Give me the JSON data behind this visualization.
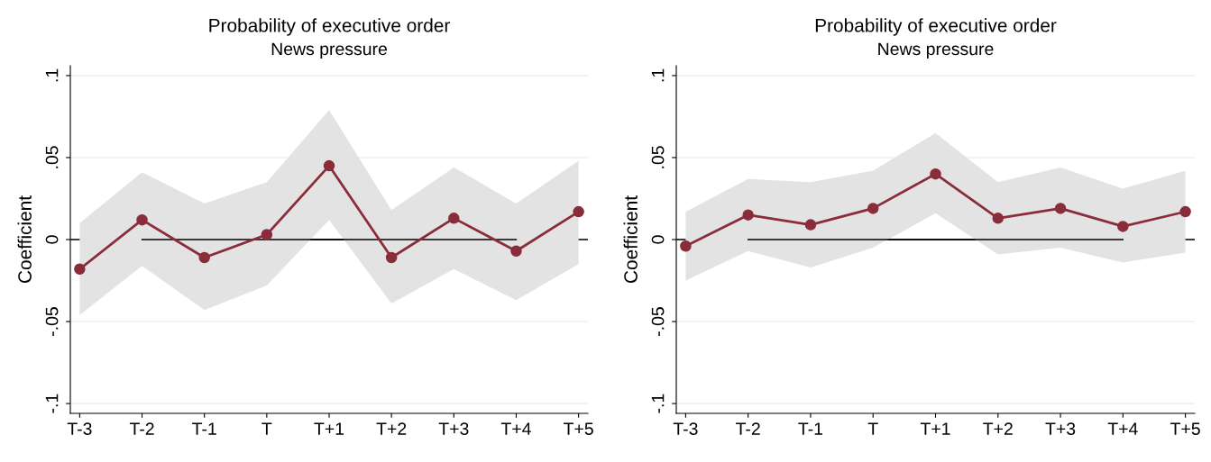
{
  "chart_data": [
    {
      "type": "line",
      "title": "Probability of executive order",
      "subtitle": "News pressure",
      "ylabel": "Coefficient",
      "categories": [
        "T-3",
        "T-2",
        "T-1",
        "T",
        "T+1",
        "T+2",
        "T+3",
        "T+4",
        "T+5"
      ],
      "series": [
        {
          "color": "#8b2c3a",
          "marker": "circle",
          "values": [
            -0.018,
            0.012,
            -0.011,
            0.003,
            0.045,
            -0.011,
            0.013,
            -0.007,
            0.017
          ],
          "lower": [
            -0.046,
            -0.016,
            -0.043,
            -0.028,
            0.012,
            -0.039,
            -0.018,
            -0.037,
            -0.015
          ],
          "upper": [
            0.01,
            0.041,
            0.022,
            0.035,
            0.079,
            0.018,
            0.044,
            0.022,
            0.048
          ]
        },
        {
          "type": "line",
          "color": "#000000",
          "marker": "none",
          "values": [
            null,
            0,
            0,
            0,
            0,
            0,
            0,
            0,
            null
          ]
        }
      ],
      "ref_lines": [
        {
          "axis": "y",
          "value": 0,
          "color": "#000000"
        }
      ],
      "ylim": [
        -0.106,
        0.106
      ],
      "yticks": [
        {
          "value": -0.1,
          "label": "-.1"
        },
        {
          "value": -0.05,
          "label": "-.05"
        },
        0,
        {
          "value": 0.05,
          "label": ".05"
        },
        {
          "value": 0.1,
          "label": ".1"
        }
      ],
      "grid": "y",
      "legend": false
    },
    {
      "type": "line",
      "title": "Probability of executive order",
      "subtitle": "News pressure",
      "ylabel": "Coefficient",
      "categories": [
        "T-3",
        "T-2",
        "T-1",
        "T",
        "T+1",
        "T+2",
        "T+3",
        "T+4",
        "T+5"
      ],
      "series": [
        {
          "color": "#8b2c3a",
          "marker": "circle",
          "values": [
            -0.004,
            0.015,
            0.009,
            0.019,
            0.04,
            0.013,
            0.019,
            0.008,
            0.017
          ],
          "lower": [
            -0.025,
            -0.007,
            -0.017,
            -0.005,
            0.016,
            -0.009,
            -0.005,
            -0.014,
            -0.008
          ],
          "upper": [
            0.017,
            0.037,
            0.035,
            0.042,
            0.065,
            0.035,
            0.044,
            0.031,
            0.042
          ]
        },
        {
          "type": "line",
          "color": "#000000",
          "marker": "none",
          "values": [
            null,
            0,
            0,
            0,
            0,
            0,
            0,
            0,
            null
          ]
        }
      ],
      "ref_lines": [
        {
          "axis": "y",
          "value": 0,
          "color": "#000000"
        }
      ],
      "ylim": [
        -0.106,
        0.106
      ],
      "yticks": [
        {
          "value": -0.1,
          "label": "-.1"
        },
        {
          "value": -0.05,
          "label": "-.05"
        },
        0,
        {
          "value": 0.05,
          "label": ".05"
        },
        {
          "value": 0.1,
          "label": ".1"
        }
      ],
      "grid": "y",
      "legend": false
    }
  ]
}
